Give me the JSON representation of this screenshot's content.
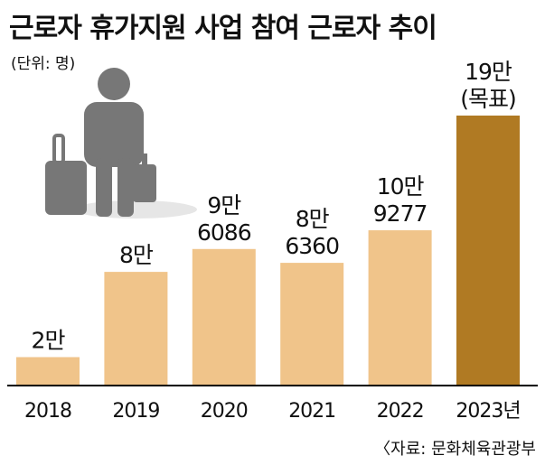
{
  "chart_data": {
    "type": "bar",
    "title": "근로자 휴가지원 사업 참여 근로자 추이",
    "unit_label": "(단위: 명)",
    "source": "〈자료: 문화체육관광부",
    "categories": [
      "2018",
      "2019",
      "2020",
      "2021",
      "2022",
      "2023년"
    ],
    "values": [
      20000,
      80000,
      96086,
      86360,
      109277,
      190000
    ],
    "data_labels": [
      [
        "2만"
      ],
      [
        "8만"
      ],
      [
        "9만",
        "6086"
      ],
      [
        "8만",
        "6360"
      ],
      [
        "10만",
        "9277"
      ],
      [
        "19만",
        "(목표)"
      ]
    ],
    "ylim": [
      0,
      190000
    ],
    "grid": false,
    "colors": {
      "bar": "#f0c48a",
      "highlight_bar": "#b07a23",
      "axis": "#000000",
      "icon": "#777777",
      "shadow": "#e6e6e6"
    },
    "highlight_index": 5
  }
}
